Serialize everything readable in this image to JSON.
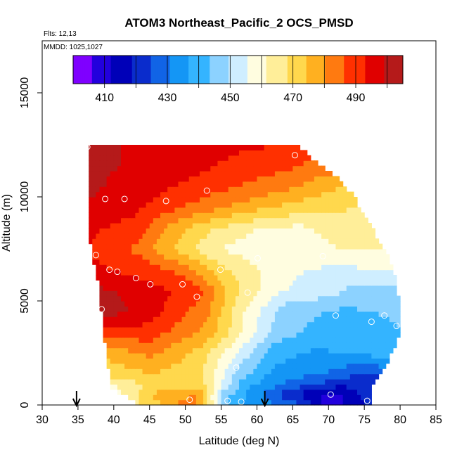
{
  "chart_data": {
    "type": "heatmap",
    "title": "ATOM3 Northeast_Pacific_2 OCS_PMSD",
    "info_lines": [
      "Flts: 12,13",
      "MMDD: 1025,1027"
    ],
    "xlabel": "Latitude (deg N)",
    "ylabel": "Altitude (m)",
    "xlim": [
      30,
      85
    ],
    "ylim": [
      0,
      17500
    ],
    "x_ticks": [
      "30",
      "35",
      "40",
      "45",
      "50",
      "55",
      "60",
      "65",
      "70",
      "75",
      "80",
      "85"
    ],
    "y_ticks": [
      "0",
      "5000",
      "10000",
      "15000"
    ],
    "colorbar": {
      "range": [
        400,
        505
      ],
      "tick_labels": [
        "410",
        "430",
        "450",
        "470",
        "490"
      ],
      "colors": [
        "#7f00ff",
        "#2200dd",
        "#0000b8",
        "#0a2ccc",
        "#1164e6",
        "#1496f5",
        "#34b4ff",
        "#8cd2ff",
        "#cfeeff",
        "#fffde0",
        "#ffee99",
        "#ffd84d",
        "#ffb020",
        "#ff7a10",
        "#ff3000",
        "#e00000",
        "#b51a1a"
      ]
    },
    "grid": "off",
    "bins": {
      "lat_step": 0.5,
      "alt_step": 250
    },
    "extent": {
      "top_alt": 12500,
      "upper_boundary": [
        [
          36.2,
          12500
        ],
        [
          65.5,
          12500
        ],
        [
          68,
          11700
        ],
        [
          71,
          10900
        ],
        [
          73,
          10200
        ],
        [
          76,
          8400
        ],
        [
          78,
          7200
        ],
        [
          79,
          6200
        ],
        [
          79.5,
          5200
        ],
        [
          80,
          4000
        ],
        [
          79,
          2700
        ],
        [
          77,
          1500
        ],
        [
          76,
          900
        ],
        [
          75.5,
          0
        ]
      ],
      "lower_boundary": [
        [
          36.5,
          12500
        ],
        [
          36.5,
          10000
        ],
        [
          37,
          7700
        ],
        [
          38,
          6000
        ],
        [
          38.5,
          4500
        ],
        [
          39,
          3000
        ],
        [
          39.5,
          1700
        ],
        [
          40,
          800
        ],
        [
          44,
          0
        ]
      ]
    },
    "profile": [
      {
        "h": 0,
        "r": [
          [
            40,
            462
          ],
          [
            46,
            472
          ],
          [
            51,
            486
          ],
          [
            54,
            460
          ],
          [
            56,
            440
          ],
          [
            66,
            426
          ],
          [
            70,
            408
          ],
          [
            74,
            416
          ],
          [
            76,
            422
          ]
        ]
      },
      {
        "h": 500,
        "r": [
          [
            40,
            458
          ],
          [
            46,
            476
          ],
          [
            52,
            480
          ],
          [
            55,
            448
          ],
          [
            60,
            432
          ],
          [
            67,
            415
          ],
          [
            71,
            410
          ],
          [
            74,
            418
          ],
          [
            76,
            420
          ]
        ]
      },
      {
        "h": 1000,
        "r": [
          [
            40,
            462
          ],
          [
            46,
            470
          ],
          [
            53,
            468
          ],
          [
            58,
            440
          ],
          [
            65,
            428
          ],
          [
            72,
            420
          ],
          [
            76,
            420
          ]
        ]
      },
      {
        "h": 1500,
        "r": [
          [
            39,
            470
          ],
          [
            45,
            474
          ],
          [
            52,
            470
          ],
          [
            57,
            448
          ],
          [
            62,
            436
          ],
          [
            70,
            430
          ],
          [
            75,
            424
          ],
          [
            77,
            426
          ]
        ]
      },
      {
        "h": 2500,
        "r": [
          [
            39,
            476
          ],
          [
            45,
            482
          ],
          [
            52,
            472
          ],
          [
            57,
            456
          ],
          [
            62,
            440
          ],
          [
            68,
            436
          ],
          [
            74,
            438
          ],
          [
            79,
            440
          ]
        ]
      },
      {
        "h": 3500,
        "r": [
          [
            39,
            490
          ],
          [
            45,
            490
          ],
          [
            53,
            478
          ],
          [
            58,
            462
          ],
          [
            63,
            446
          ],
          [
            70,
            440
          ],
          [
            76,
            440
          ],
          [
            80,
            442
          ]
        ]
      },
      {
        "h": 4500,
        "r": [
          [
            38.5,
            502
          ],
          [
            45,
            496
          ],
          [
            53,
            482
          ],
          [
            58,
            462
          ],
          [
            64,
            446
          ],
          [
            72,
            442
          ],
          [
            78,
            444
          ],
          [
            80,
            446
          ]
        ]
      },
      {
        "h": 5500,
        "r": [
          [
            38,
            500
          ],
          [
            45,
            496
          ],
          [
            52,
            488
          ],
          [
            57,
            470
          ],
          [
            63,
            456
          ],
          [
            70,
            452
          ],
          [
            75,
            446
          ],
          [
            79,
            448
          ]
        ]
      },
      {
        "h": 6500,
        "r": [
          [
            37.5,
            494
          ],
          [
            44,
            490
          ],
          [
            50,
            484
          ],
          [
            55,
            470
          ],
          [
            60,
            462
          ],
          [
            66,
            456
          ],
          [
            72,
            454
          ],
          [
            78,
            456
          ]
        ]
      },
      {
        "h": 7500,
        "r": [
          [
            37,
            492
          ],
          [
            44,
            484
          ],
          [
            49,
            472
          ],
          [
            54,
            462
          ],
          [
            60,
            458
          ],
          [
            66,
            458
          ],
          [
            72,
            462
          ],
          [
            77,
            462
          ]
        ]
      },
      {
        "h": 8500,
        "r": [
          [
            36.5,
            494
          ],
          [
            43,
            490
          ],
          [
            48,
            478
          ],
          [
            54,
            468
          ],
          [
            60,
            462
          ],
          [
            66,
            460
          ],
          [
            72,
            466
          ],
          [
            76,
            464
          ]
        ]
      },
      {
        "h": 9500,
        "r": [
          [
            36.5,
            498
          ],
          [
            43,
            494
          ],
          [
            50,
            486
          ],
          [
            56,
            480
          ],
          [
            62,
            474
          ],
          [
            68,
            470
          ],
          [
            73,
            468
          ]
        ]
      },
      {
        "h": 10500,
        "r": [
          [
            36.5,
            500
          ],
          [
            44,
            496
          ],
          [
            52,
            490
          ],
          [
            58,
            486
          ],
          [
            64,
            482
          ],
          [
            70,
            476
          ],
          [
            72,
            474
          ]
        ]
      },
      {
        "h": 11500,
        "r": [
          [
            36.5,
            500
          ],
          [
            44,
            498
          ],
          [
            52,
            494
          ],
          [
            58,
            490
          ],
          [
            64,
            488
          ],
          [
            68,
            484
          ]
        ]
      },
      {
        "h": 12500,
        "r": [
          [
            36.5,
            500
          ],
          [
            44,
            498
          ],
          [
            52,
            496
          ],
          [
            58,
            494
          ],
          [
            65,
            492
          ]
        ]
      }
    ],
    "samples": [
      [
        36.3,
        12400
      ],
      [
        65.3,
        12000
      ],
      [
        53,
        10300
      ],
      [
        38.8,
        9900
      ],
      [
        41.5,
        9900
      ],
      [
        47.3,
        9800
      ],
      [
        37.5,
        7200
      ],
      [
        60.1,
        7050
      ],
      [
        69.2,
        7150
      ],
      [
        39.4,
        6500
      ],
      [
        40.5,
        6400
      ],
      [
        54.9,
        6500
      ],
      [
        43.1,
        6100
      ],
      [
        45.1,
        5800
      ],
      [
        49.6,
        5800
      ],
      [
        58.7,
        5400
      ],
      [
        51.6,
        5200
      ],
      [
        38.3,
        4600
      ],
      [
        71,
        4300
      ],
      [
        77.8,
        4300
      ],
      [
        76,
        4000
      ],
      [
        79.5,
        3800
      ],
      [
        57.1,
        1800
      ],
      [
        70.3,
        500
      ],
      [
        50.6,
        250
      ],
      [
        55.9,
        200
      ],
      [
        57.8,
        150
      ],
      [
        75.4,
        200
      ]
    ],
    "markers": [
      {
        "lat": 34.8,
        "type": "arrow"
      },
      {
        "lat": 61.1,
        "type": "arrow"
      }
    ]
  }
}
